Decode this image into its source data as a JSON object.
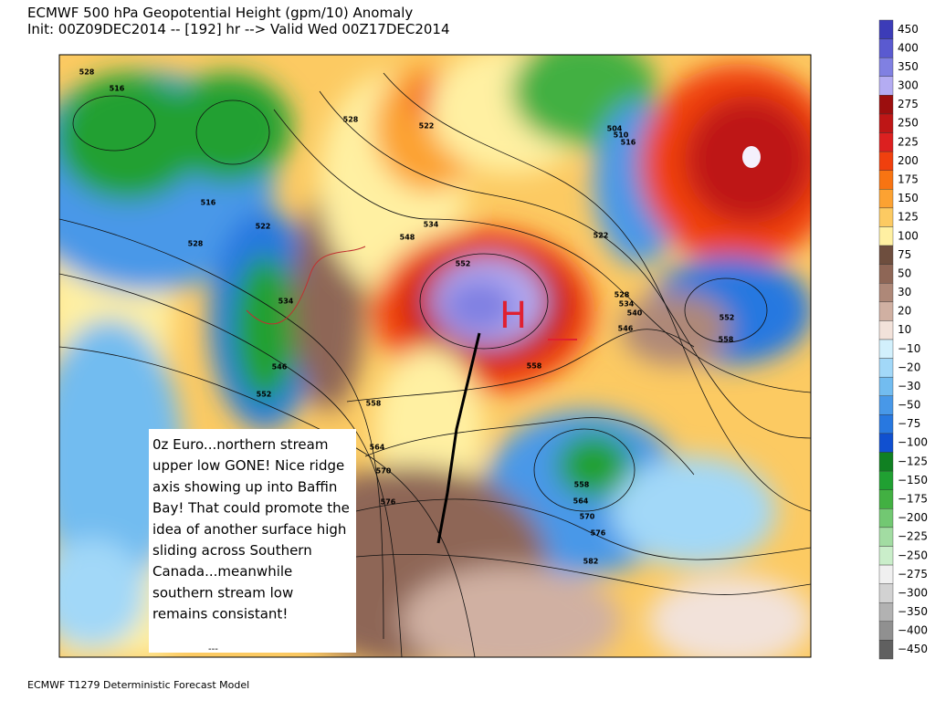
{
  "header": {
    "title": "ECMWF 500 hPa Geopotential Height (gpm/10) Anomaly",
    "subtitle": "Init: 00Z09DEC2014 -- [192] hr --> Valid Wed 00Z17DEC2014"
  },
  "colorbar": [
    {
      "label": "450",
      "color": "#3c3cb8"
    },
    {
      "label": "400",
      "color": "#5a5ad0"
    },
    {
      "label": "350",
      "color": "#8080e2"
    },
    {
      "label": "300",
      "color": "#b4acf2"
    },
    {
      "label": "275",
      "color": "#9c0e0e"
    },
    {
      "label": "250",
      "color": "#be1616"
    },
    {
      "label": "225",
      "color": "#dc2020"
    },
    {
      "label": "200",
      "color": "#f0400e"
    },
    {
      "label": "175",
      "color": "#f87412"
    },
    {
      "label": "150",
      "color": "#fca232"
    },
    {
      "label": "125",
      "color": "#fcca62"
    },
    {
      "label": "100",
      "color": "#fff0a2"
    },
    {
      "label": "75",
      "color": "#6e4e3e"
    },
    {
      "label": "50",
      "color": "#8e6656"
    },
    {
      "label": "30",
      "color": "#ae8878"
    },
    {
      "label": "20",
      "color": "#d0b0a2"
    },
    {
      "label": "10",
      "color": "#f2e2da"
    },
    {
      "label": "−10",
      "color": "#d2f0fc"
    },
    {
      "label": "−20",
      "color": "#a2d8f8"
    },
    {
      "label": "−30",
      "color": "#72bcf0"
    },
    {
      "label": "−50",
      "color": "#4898e8"
    },
    {
      "label": "−75",
      "color": "#2878e0"
    },
    {
      "label": "−100",
      "color": "#1050d0"
    },
    {
      "label": "−125",
      "color": "#108022"
    },
    {
      "label": "−150",
      "color": "#20a032"
    },
    {
      "label": "−175",
      "color": "#42b042"
    },
    {
      "label": "−200",
      "color": "#72c872"
    },
    {
      "label": "−225",
      "color": "#a2dca2"
    },
    {
      "label": "−250",
      "color": "#caeeca"
    },
    {
      "label": "−275",
      "color": "#f0f0f0"
    },
    {
      "label": "−300",
      "color": "#d2d2d2"
    },
    {
      "label": "−350",
      "color": "#b2b2b2"
    },
    {
      "label": "−400",
      "color": "#909090"
    },
    {
      "label": "−450",
      "color": "#606060"
    }
  ],
  "map": {
    "contour_labels": [
      "516",
      "516",
      "528",
      "522",
      "528",
      "534",
      "546",
      "552",
      "528",
      "522",
      "534",
      "548",
      "552",
      "558",
      "558",
      "564",
      "570",
      "576",
      "558",
      "564",
      "570",
      "576",
      "582",
      "504",
      "510",
      "516",
      "522",
      "528",
      "534",
      "540",
      "546",
      "552",
      "558"
    ],
    "symbol": "H"
  },
  "annotation": {
    "lines": [
      "0z Euro...northern stream",
      "upper low GONE! Nice ridge",
      "axis showing up into Baffin",
      "Bay! That could promote the",
      "idea of another surface high",
      "sliding across Southern",
      "Canada...meanwhile",
      "southern stream low",
      "remains consistant!"
    ],
    "footnote": "---"
  },
  "footer": "ECMWF T1279 Deterministic Forecast Model"
}
